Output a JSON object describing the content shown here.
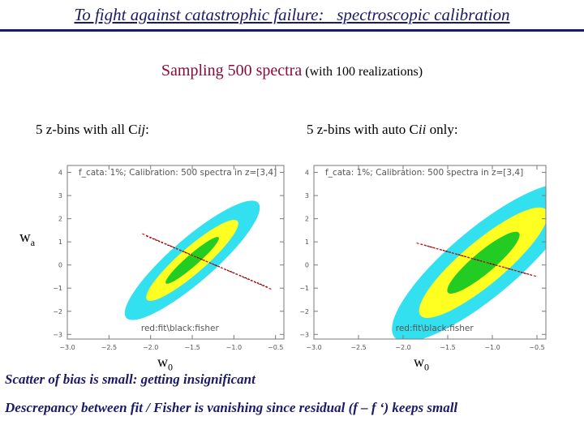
{
  "title": "To fight against catastrophic failure:   spectroscopic calibration",
  "subtitle": {
    "main": "Sampling 500 spectra",
    "sub": "(with 100 realizations)"
  },
  "panels": [
    {
      "label_prefix": "5 z-bins with all C",
      "label_var": "ij",
      "label_suffix": ":"
    },
    {
      "label_prefix": "5 z-bins with auto C",
      "label_var": "ii",
      "label_suffix": " only:"
    }
  ],
  "axes": {
    "ylabel_main": "w",
    "ylabel_sub": "a",
    "xlabel_main": "w",
    "xlabel_sub": "0"
  },
  "notes": {
    "scatter": "Scatter of bias is small: getting insignificant",
    "descrepancy": "Descrepancy between  fit / Fisher is vanishing since residual (f – f ‘) keeps small"
  },
  "colors": {
    "outer": "#33e0f0",
    "middle": "#ffff22",
    "inner": "#22cc22",
    "fit": "#e01010",
    "fisher": "#000000",
    "frame": "#7a7a7a",
    "text_blue": "#1a1a66",
    "text_red": "#8b0a3a"
  },
  "chart_data": [
    {
      "type": "scatter",
      "title": "f_cata: 1%; Calibration: 500 spectra in z=[3,4]",
      "legend_text": "red:fit\\black:fisher",
      "xlim": [
        -3.0,
        -0.4
      ],
      "ylim": [
        -3.2,
        4.3
      ],
      "xticks": [
        -3.0,
        -2.5,
        -2.0,
        -1.5,
        -1.0,
        -0.5
      ],
      "xtick_labels": [
        "−3.0",
        "−2.5",
        "−2.0",
        "−1.5",
        "−1.0",
        "−0.5"
      ],
      "yticks": [
        -3,
        -2,
        -1,
        0,
        1,
        2,
        3,
        4
      ],
      "ytick_labels": [
        "−3",
        "−2",
        "−1",
        "0",
        "1",
        "2",
        "3",
        "4"
      ],
      "ellipse_center": [
        -1.5,
        0.2
      ],
      "ellipse_angle_deg": -41,
      "ellipse_half_axes": {
        "outer": [
          1.05,
          0.26
        ],
        "middle": [
          0.72,
          0.155
        ],
        "inner": [
          0.42,
          0.07
        ]
      },
      "fit_line": [
        [
          -2.1,
          1.35
        ],
        [
          -0.55,
          -1.05
        ]
      ],
      "fisher_line": [
        [
          -2.05,
          1.25
        ],
        [
          -0.6,
          -0.95
        ]
      ]
    },
    {
      "type": "scatter",
      "title": "f_cata: 1%; Calibration: 500 spectra in z=[3,4]",
      "legend_text": "red:fit\\black:fisher",
      "xlim": [
        -3.0,
        -0.4
      ],
      "ylim": [
        -3.2,
        4.3
      ],
      "xticks": [
        -3.0,
        -2.5,
        -2.0,
        -1.5,
        -1.0,
        -0.5
      ],
      "xtick_labels": [
        "−3.0",
        "−2.5",
        "−2.0",
        "−1.5",
        "−1.0",
        "−0.5"
      ],
      "yticks": [
        -3,
        -2,
        -1,
        0,
        1,
        2,
        3,
        4
      ],
      "ytick_labels": [
        "−3",
        "−2",
        "−1",
        "0",
        "1",
        "2",
        "3",
        "4"
      ],
      "ellipse_center": [
        -1.1,
        0.1
      ],
      "ellipse_angle_deg": -40,
      "ellipse_half_axes": {
        "outer": [
          1.3,
          0.38
        ],
        "middle": [
          0.92,
          0.24
        ],
        "inner": [
          0.52,
          0.12
        ]
      },
      "fit_line": [
        [
          -1.85,
          0.95
        ],
        [
          -0.5,
          -0.5
        ]
      ],
      "fisher_line": [
        [
          -1.8,
          0.9
        ],
        [
          -0.55,
          -0.45
        ]
      ]
    }
  ]
}
